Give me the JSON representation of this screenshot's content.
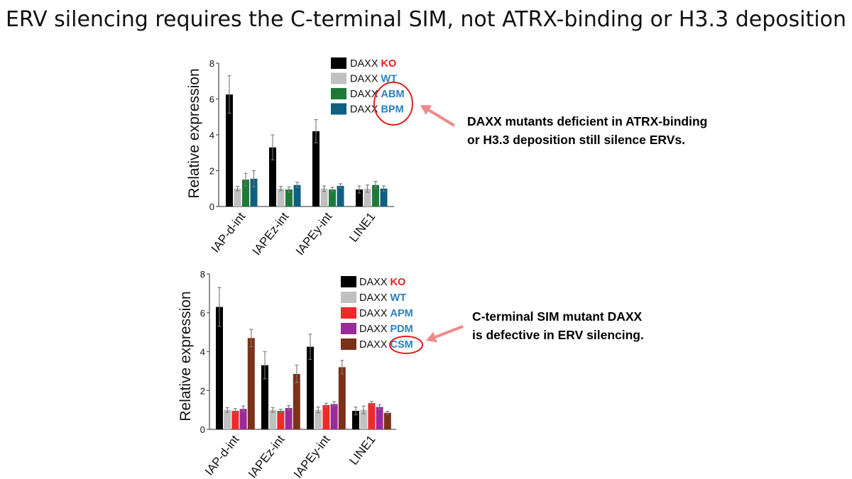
{
  "title": "ERV silencing requires the C-terminal SIM, not ATRX-binding or H3.3 deposition",
  "chart_data": [
    {
      "type": "bar",
      "ylabel": "Relative expression",
      "ylim": [
        0,
        8
      ],
      "yticks": [
        "0",
        "2",
        "4",
        "6",
        "8"
      ],
      "categories": [
        "IAP-d-int",
        "IAPEz-int",
        "IAPEy-int",
        "LINE1"
      ],
      "series": [
        {
          "name": "KO",
          "color": "#000000",
          "values": [
            6.25,
            3.3,
            4.2,
            0.95
          ],
          "errors": [
            1.05,
            0.7,
            0.65,
            0.2
          ]
        },
        {
          "name": "WT",
          "color": "#c0c0c0",
          "values": [
            1.0,
            1.0,
            1.0,
            1.0
          ],
          "errors": [
            0.12,
            0.12,
            0.15,
            0.2
          ]
        },
        {
          "name": "ABM",
          "color": "#1f7a3a",
          "values": [
            1.5,
            0.95,
            0.95,
            1.2
          ],
          "errors": [
            0.35,
            0.15,
            0.12,
            0.2
          ]
        },
        {
          "name": "BPM",
          "color": "#0f5f80",
          "values": [
            1.55,
            1.2,
            1.15,
            1.0
          ],
          "errors": [
            0.45,
            0.15,
            0.12,
            0.15
          ]
        }
      ],
      "legend": [
        {
          "prefix": "DAXX",
          "label": "KO",
          "label_color": "#e02020"
        },
        {
          "prefix": "DAXX",
          "label": "WT",
          "label_color": "#2a7fbf"
        },
        {
          "prefix": "DAXX",
          "label": "ABM",
          "label_color": "#2a7fbf"
        },
        {
          "prefix": "DAXX",
          "label": "BPM",
          "label_color": "#2a7fbf"
        }
      ],
      "annotation": {
        "lines": [
          "DAXX mutants deficient in ATRX-binding",
          "or H3.3 deposition still silence ERVs."
        ]
      }
    },
    {
      "type": "bar",
      "ylabel": "Relative expression",
      "ylim": [
        0,
        8
      ],
      "yticks": [
        "0",
        "2",
        "4",
        "6",
        "8"
      ],
      "categories": [
        "IAP-d-int",
        "IAPEz-int",
        "IAPEy-int",
        "LINE1"
      ],
      "series": [
        {
          "name": "KO",
          "color": "#000000",
          "values": [
            6.3,
            3.3,
            4.25,
            0.95
          ],
          "errors": [
            1.0,
            0.7,
            0.65,
            0.2
          ]
        },
        {
          "name": "WT",
          "color": "#c0c0c0",
          "values": [
            1.0,
            1.0,
            1.0,
            1.0
          ],
          "errors": [
            0.12,
            0.12,
            0.15,
            0.2
          ]
        },
        {
          "name": "APM",
          "color": "#ee2a2a",
          "values": [
            0.95,
            0.95,
            1.25,
            1.35
          ],
          "errors": [
            0.12,
            0.08,
            0.1,
            0.08
          ]
        },
        {
          "name": "PDM",
          "color": "#9b2a9b",
          "values": [
            1.05,
            1.1,
            1.3,
            1.15
          ],
          "errors": [
            0.15,
            0.12,
            0.12,
            0.12
          ]
        },
        {
          "name": "CSM",
          "color": "#7a3218",
          "values": [
            4.7,
            2.85,
            3.2,
            0.85
          ],
          "errors": [
            0.45,
            0.45,
            0.35,
            0.08
          ]
        }
      ],
      "legend": [
        {
          "prefix": "DAXX",
          "label": "KO",
          "label_color": "#e02020"
        },
        {
          "prefix": "DAXX",
          "label": "WT",
          "label_color": "#2a7fbf"
        },
        {
          "prefix": "DAXX",
          "label": "APM",
          "label_color": "#2a7fbf"
        },
        {
          "prefix": "DAXX",
          "label": "PDM",
          "label_color": "#2a7fbf"
        },
        {
          "prefix": "DAXX",
          "label": "CSM",
          "label_color": "#2a7fbf"
        }
      ],
      "annotation": {
        "lines": [
          "C-terminal SIM mutant DAXX",
          "is defective in ERV silencing."
        ]
      }
    }
  ]
}
